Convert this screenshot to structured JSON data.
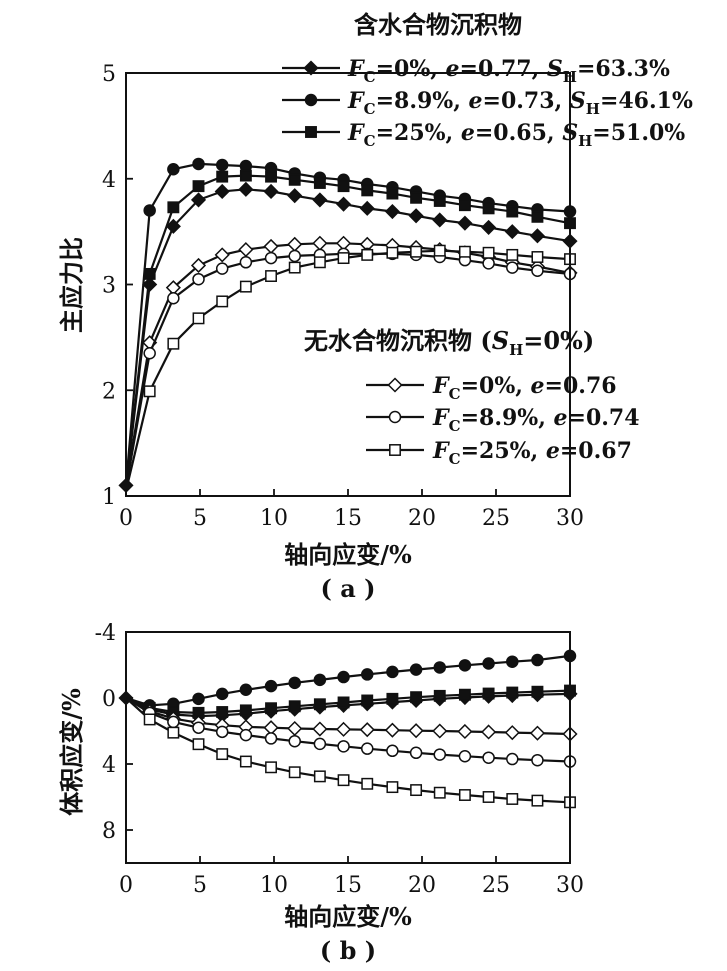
{
  "chart_data": [
    {
      "type": "line",
      "panel": "a",
      "caption": "( a )",
      "xlabel": "轴向应变/%",
      "ylabel": "主应力比",
      "xlim": [
        0,
        30
      ],
      "ylim": [
        1,
        5
      ],
      "xticks": [
        0,
        5,
        10,
        15,
        20,
        25,
        30
      ],
      "yticks": [
        1,
        2,
        3,
        4,
        5
      ],
      "legend_groups": [
        {
          "title": "含水合物沉积物",
          "series": [
            0,
            1,
            2
          ]
        },
        {
          "title": "无水合物沉积物 (S_H=0%)",
          "title_prefix": "无水合物沉积物 (",
          "title_var": "S",
          "title_sub": "H",
          "title_suffix": "=0%)",
          "series": [
            3,
            4,
            5
          ]
        }
      ],
      "series": [
        {
          "name": "F_C=0%, e=0.77, S_H=63.3%",
          "fc": "=0%, ",
          "e": "=0.77, ",
          "sh": "=63.3%",
          "marker": "diamond",
          "fill": "black",
          "x": [
            0,
            1.6,
            3.2,
            4.9,
            6.5,
            8.1,
            9.8,
            11.4,
            13.1,
            14.7,
            16.3,
            18.0,
            19.6,
            21.2,
            22.9,
            24.5,
            26.1,
            27.8,
            30
          ],
          "y": [
            1.1,
            3.0,
            3.55,
            3.8,
            3.88,
            3.9,
            3.88,
            3.84,
            3.8,
            3.76,
            3.72,
            3.69,
            3.65,
            3.61,
            3.58,
            3.54,
            3.5,
            3.46,
            3.41
          ]
        },
        {
          "name": "F_C=8.9%, e=0.73, S_H=46.1%",
          "fc": "=8.9%, ",
          "e": "=0.73, ",
          "sh": "=46.1%",
          "marker": "circle",
          "fill": "black",
          "x": [
            0,
            1.6,
            3.2,
            4.9,
            6.5,
            8.1,
            9.8,
            11.4,
            13.1,
            14.7,
            16.3,
            18.0,
            19.6,
            21.2,
            22.9,
            24.5,
            26.1,
            27.8,
            30
          ],
          "y": [
            1.1,
            3.7,
            4.09,
            4.14,
            4.13,
            4.12,
            4.1,
            4.05,
            4.01,
            3.99,
            3.95,
            3.92,
            3.88,
            3.84,
            3.81,
            3.77,
            3.74,
            3.71,
            3.69
          ]
        },
        {
          "name": "F_C=25%, e=0.65, S_H=51.0%",
          "fc": "=25%, ",
          "e": "=0.65, ",
          "sh": "=51.0%",
          "marker": "square",
          "fill": "black",
          "x": [
            0,
            1.6,
            3.2,
            4.9,
            6.5,
            8.1,
            9.8,
            11.4,
            13.1,
            14.7,
            16.3,
            18.0,
            19.6,
            21.2,
            22.9,
            24.5,
            26.1,
            27.8,
            30
          ],
          "y": [
            1.1,
            3.1,
            3.73,
            3.93,
            4.02,
            4.03,
            4.02,
            3.99,
            3.96,
            3.93,
            3.89,
            3.86,
            3.82,
            3.79,
            3.75,
            3.72,
            3.69,
            3.64,
            3.58
          ]
        },
        {
          "name": "F_C=0%, e=0.76",
          "fc": "=0%, ",
          "e": "=0.76",
          "marker": "diamond",
          "fill": "white",
          "x": [
            0,
            1.6,
            3.2,
            4.9,
            6.5,
            8.1,
            9.8,
            11.4,
            13.1,
            14.7,
            16.3,
            18.0,
            19.6,
            21.2,
            22.9,
            24.5,
            26.1,
            27.8,
            30
          ],
          "y": [
            1.1,
            2.45,
            2.97,
            3.18,
            3.28,
            3.33,
            3.36,
            3.38,
            3.39,
            3.39,
            3.38,
            3.37,
            3.35,
            3.33,
            3.3,
            3.26,
            3.21,
            3.17,
            3.11
          ]
        },
        {
          "name": "F_C=8.9%, e=0.74",
          "fc": "=8.9%, ",
          "e": "=0.74",
          "marker": "circle",
          "fill": "white",
          "x": [
            0,
            1.6,
            3.2,
            4.9,
            6.5,
            8.1,
            9.8,
            11.4,
            13.1,
            14.7,
            16.3,
            18.0,
            19.6,
            21.2,
            22.9,
            24.5,
            26.1,
            27.8,
            30
          ],
          "y": [
            1.08,
            2.35,
            2.87,
            3.05,
            3.15,
            3.21,
            3.25,
            3.27,
            3.28,
            3.29,
            3.29,
            3.29,
            3.28,
            3.26,
            3.23,
            3.2,
            3.16,
            3.13,
            3.1
          ]
        },
        {
          "name": "F_C=25%, e=0.67",
          "fc": "=25%, ",
          "e": "=0.67",
          "marker": "square",
          "fill": "white",
          "x": [
            0,
            1.6,
            3.2,
            4.9,
            6.5,
            8.1,
            9.8,
            11.4,
            13.1,
            14.7,
            16.3,
            18.0,
            19.6,
            21.2,
            22.9,
            24.5,
            26.1,
            27.8,
            30
          ],
          "y": [
            1.05,
            1.99,
            2.44,
            2.68,
            2.84,
            2.98,
            3.08,
            3.16,
            3.21,
            3.25,
            3.28,
            3.3,
            3.31,
            3.32,
            3.31,
            3.3,
            3.28,
            3.26,
            3.24
          ]
        }
      ]
    },
    {
      "type": "line",
      "panel": "b",
      "caption": "( b )",
      "xlabel": "轴向应变/%",
      "ylabel": "体积应变/%",
      "xlim": [
        0,
        30
      ],
      "ylim": [
        10,
        -4
      ],
      "y_inverted": true,
      "xticks": [
        0,
        5,
        10,
        15,
        20,
        25,
        30
      ],
      "yticks": [
        -4,
        0,
        4,
        8
      ],
      "series": [
        {
          "name": "F_C=0%, e=0.77, S_H=63.3%",
          "marker": "diamond",
          "fill": "black",
          "x": [
            0,
            1.6,
            3.2,
            4.9,
            6.5,
            8.1,
            9.8,
            11.4,
            13.1,
            14.7,
            16.3,
            18.0,
            19.6,
            21.2,
            22.9,
            24.5,
            26.1,
            27.8,
            30
          ],
          "y": [
            0,
            0.7,
            1.0,
            1.1,
            1.05,
            0.95,
            0.8,
            0.68,
            0.55,
            0.45,
            0.35,
            0.25,
            0.15,
            0.05,
            -0.03,
            -0.1,
            -0.15,
            -0.2,
            -0.25
          ]
        },
        {
          "name": "F_C=8.9%, e=0.73, S_H=46.1%",
          "marker": "circle",
          "fill": "black",
          "x": [
            0,
            1.6,
            3.2,
            4.9,
            6.5,
            8.1,
            9.8,
            11.4,
            13.1,
            14.7,
            16.3,
            18.0,
            19.6,
            21.2,
            22.9,
            24.5,
            26.1,
            27.8,
            30
          ],
          "y": [
            0,
            0.45,
            0.35,
            0.05,
            -0.25,
            -0.5,
            -0.72,
            -0.92,
            -1.1,
            -1.27,
            -1.43,
            -1.58,
            -1.72,
            -1.85,
            -1.98,
            -2.09,
            -2.2,
            -2.3,
            -2.55
          ]
        },
        {
          "name": "F_C=25%, e=0.65, S_H=51.0%",
          "marker": "square",
          "fill": "black",
          "x": [
            0,
            1.6,
            3.2,
            4.9,
            6.5,
            8.1,
            9.8,
            11.4,
            13.1,
            14.7,
            16.3,
            18.0,
            19.6,
            21.2,
            22.9,
            24.5,
            26.1,
            27.8,
            30
          ],
          "y": [
            0,
            0.6,
            0.85,
            0.9,
            0.85,
            0.75,
            0.62,
            0.5,
            0.38,
            0.27,
            0.15,
            0.05,
            -0.05,
            -0.13,
            -0.2,
            -0.27,
            -0.33,
            -0.38,
            -0.45
          ]
        },
        {
          "name": "F_C=0%, e=0.76",
          "marker": "diamond",
          "fill": "white",
          "x": [
            0,
            1.6,
            3.2,
            4.9,
            6.5,
            8.1,
            9.8,
            11.4,
            13.1,
            14.7,
            16.3,
            18.0,
            19.6,
            21.2,
            22.9,
            24.5,
            26.1,
            27.8,
            30
          ],
          "y": [
            0,
            0.8,
            1.25,
            1.5,
            1.65,
            1.75,
            1.8,
            1.85,
            1.88,
            1.9,
            1.92,
            1.95,
            1.98,
            2.0,
            2.03,
            2.06,
            2.1,
            2.13,
            2.18
          ]
        },
        {
          "name": "F_C=8.9%, e=0.74",
          "marker": "circle",
          "fill": "white",
          "x": [
            0,
            1.6,
            3.2,
            4.9,
            6.5,
            8.1,
            9.8,
            11.4,
            13.1,
            14.7,
            16.3,
            18.0,
            19.6,
            21.2,
            22.9,
            24.5,
            26.1,
            27.8,
            30
          ],
          "y": [
            0,
            0.9,
            1.45,
            1.8,
            2.05,
            2.25,
            2.45,
            2.62,
            2.78,
            2.93,
            3.07,
            3.2,
            3.32,
            3.43,
            3.53,
            3.62,
            3.7,
            3.77,
            3.85
          ]
        },
        {
          "name": "F_C=25%, e=0.67",
          "marker": "square",
          "fill": "white",
          "x": [
            0,
            1.6,
            3.2,
            4.9,
            6.5,
            8.1,
            9.8,
            11.4,
            13.1,
            14.7,
            16.3,
            18.0,
            19.6,
            21.2,
            22.9,
            24.5,
            26.1,
            27.8,
            30
          ],
          "y": [
            0,
            1.3,
            2.1,
            2.8,
            3.4,
            3.85,
            4.2,
            4.5,
            4.75,
            4.98,
            5.2,
            5.4,
            5.58,
            5.74,
            5.88,
            6.0,
            6.12,
            6.22,
            6.32
          ]
        }
      ]
    }
  ]
}
